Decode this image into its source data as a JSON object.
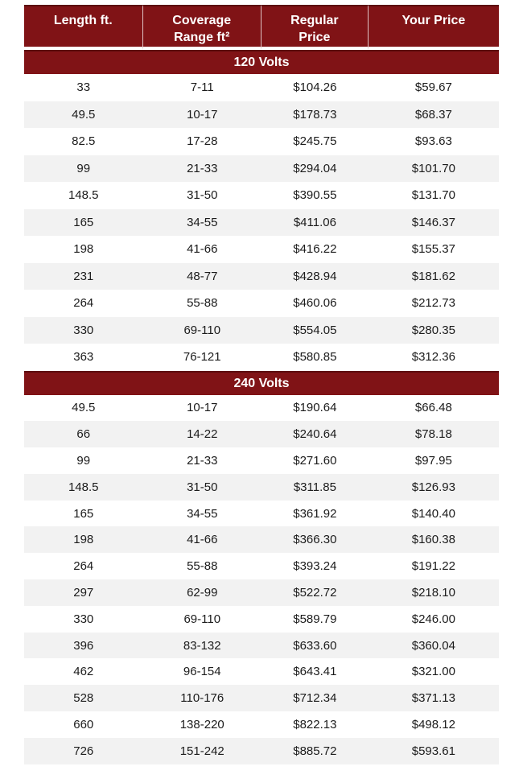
{
  "table": {
    "columns": [
      "Length ft.",
      "Coverage\nRange ft²",
      "Regular\nPrice",
      "Your Price"
    ],
    "sections": [
      {
        "title": "120 Volts",
        "rows": [
          [
            "33",
            "7-11",
            "$104.26",
            "$59.67"
          ],
          [
            "49.5",
            "10-17",
            "$178.73",
            "$68.37"
          ],
          [
            "82.5",
            "17-28",
            "$245.75",
            "$93.63"
          ],
          [
            "99",
            "21-33",
            "$294.04",
            "$101.70"
          ],
          [
            "148.5",
            "31-50",
            "$390.55",
            "$131.70"
          ],
          [
            "165",
            "34-55",
            "$411.06",
            "$146.37"
          ],
          [
            "198",
            "41-66",
            "$416.22",
            "$155.37"
          ],
          [
            "231",
            "48-77",
            "$428.94",
            "$181.62"
          ],
          [
            "264",
            "55-88",
            "$460.06",
            "$212.73"
          ],
          [
            "330",
            "69-110",
            "$554.05",
            "$280.35"
          ],
          [
            "363",
            "76-121",
            "$580.85",
            "$312.36"
          ]
        ]
      },
      {
        "title": "240 Volts",
        "rows": [
          [
            "49.5",
            "10-17",
            "$190.64",
            "$66.48"
          ],
          [
            "66",
            "14-22",
            "$240.64",
            "$78.18"
          ],
          [
            "99",
            "21-33",
            "$271.60",
            "$97.95"
          ],
          [
            "148.5",
            "31-50",
            "$311.85",
            "$126.93"
          ],
          [
            "165",
            "34-55",
            "$361.92",
            "$140.40"
          ],
          [
            "198",
            "41-66",
            "$366.30",
            "$160.38"
          ],
          [
            "264",
            "55-88",
            "$393.24",
            "$191.22"
          ],
          [
            "297",
            "62-99",
            "$522.72",
            "$218.10"
          ],
          [
            "330",
            "69-110",
            "$589.79",
            "$246.00"
          ],
          [
            "396",
            "83-132",
            "$633.60",
            "$360.04"
          ],
          [
            "462",
            "96-154",
            "$643.41",
            "$321.00"
          ],
          [
            "528",
            "110-176",
            "$712.34",
            "$371.13"
          ],
          [
            "660",
            "138-220",
            "$822.13",
            "$498.12"
          ],
          [
            "726",
            "151-242",
            "$885.72",
            "$593.61"
          ]
        ]
      }
    ],
    "colors": {
      "header_bg": "#801316",
      "header_text": "#ffffff",
      "row_stripe": "#f2f2f2",
      "row_text": "#1b1b1b"
    }
  }
}
